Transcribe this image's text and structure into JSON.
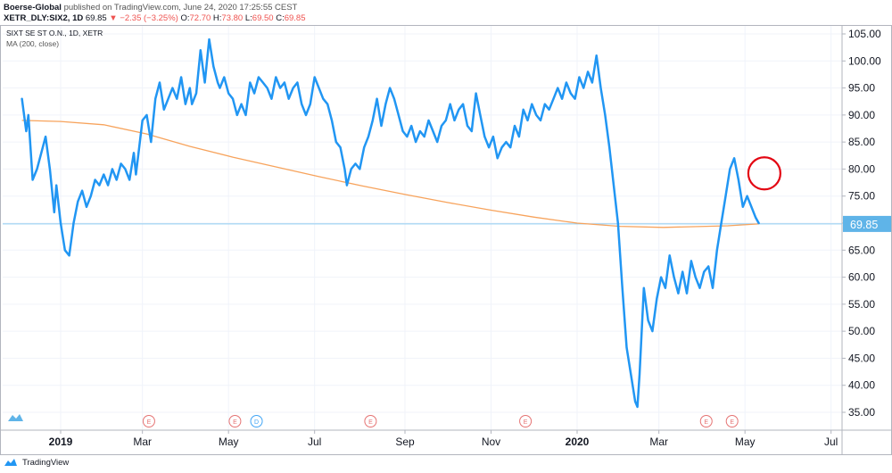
{
  "header": {
    "publisher": "Boerse-Global",
    "published_text": "published on TradingView.com, June 24, 2020 17:25:55 CEST",
    "symbol": "XETR_DLY:SIX2, 1D",
    "last": "69.85",
    "change_text": "▼ −2.35 (−3.25%)",
    "ohlc": {
      "o_label": "O:",
      "o": "72.70",
      "h_label": "H:",
      "h": "73.80",
      "l_label": "L:",
      "l": "69.50",
      "c_label": "C:",
      "c": "69.85"
    }
  },
  "legend": {
    "title": "SIXT SE ST O.N., 1D, XETR",
    "indicator": "MA (200, close)"
  },
  "footer": {
    "brand": "TradingView"
  },
  "colors": {
    "price_line": "#2196f3",
    "ma_line": "#f7a35c",
    "last_price_line": "#8ecbf0",
    "last_price_tag": "#5fb4e8",
    "annotation_circle": "#e30613",
    "earnings_marker": "#e57373",
    "dividend_marker": "#42a5f5"
  },
  "chart_data": {
    "type": "line",
    "title": "SIXT SE ST O.N., 1D, XETR",
    "ylim": [
      31,
      108
    ],
    "y_ticks": [
      35,
      40,
      45,
      50,
      55,
      60,
      65,
      70,
      75,
      80,
      85,
      90,
      95,
      100,
      105
    ],
    "y_tick_labels": [
      "35.00",
      "40.00",
      "45.00",
      "50.00",
      "55.00",
      "60.00",
      "65.00",
      "70.00",
      "75.00",
      "80.00",
      "85.00",
      "90.00",
      "95.00",
      "100.00",
      "105.00"
    ],
    "x_ticks": [
      {
        "label": "2019",
        "t": 0.5,
        "bold": true
      },
      {
        "label": "Mar",
        "t": 2.4
      },
      {
        "label": "May",
        "t": 4.4
      },
      {
        "label": "Jul",
        "t": 6.4
      },
      {
        "label": "Sep",
        "t": 8.5
      },
      {
        "label": "Nov",
        "t": 10.5
      },
      {
        "label": "2020",
        "t": 12.5,
        "bold": true
      },
      {
        "label": "Mar",
        "t": 14.4
      },
      {
        "label": "May",
        "t": 16.4
      },
      {
        "label": "Jul",
        "t": 18.4
      }
    ],
    "x_range": [
      -0.4,
      18.6
    ],
    "last_price": 69.85,
    "last_price_label": "69.85",
    "series": [
      {
        "name": "SIX2",
        "points": [
          [
            -0.4,
            93
          ],
          [
            -0.3,
            87
          ],
          [
            -0.25,
            90
          ],
          [
            -0.15,
            78
          ],
          [
            -0.05,
            80
          ],
          [
            0.05,
            83
          ],
          [
            0.15,
            86
          ],
          [
            0.25,
            80
          ],
          [
            0.35,
            72
          ],
          [
            0.4,
            77
          ],
          [
            0.5,
            70
          ],
          [
            0.6,
            65
          ],
          [
            0.7,
            64
          ],
          [
            0.8,
            70
          ],
          [
            0.9,
            74
          ],
          [
            1.0,
            76
          ],
          [
            1.1,
            73
          ],
          [
            1.2,
            75
          ],
          [
            1.3,
            78
          ],
          [
            1.4,
            77
          ],
          [
            1.5,
            79
          ],
          [
            1.6,
            77
          ],
          [
            1.7,
            80
          ],
          [
            1.8,
            78
          ],
          [
            1.9,
            81
          ],
          [
            2.0,
            80
          ],
          [
            2.1,
            78
          ],
          [
            2.2,
            83
          ],
          [
            2.25,
            79
          ],
          [
            2.4,
            89
          ],
          [
            2.5,
            90
          ],
          [
            2.6,
            85
          ],
          [
            2.7,
            93
          ],
          [
            2.8,
            96
          ],
          [
            2.9,
            91
          ],
          [
            3.0,
            93
          ],
          [
            3.1,
            95
          ],
          [
            3.2,
            93
          ],
          [
            3.3,
            97
          ],
          [
            3.4,
            92
          ],
          [
            3.5,
            95
          ],
          [
            3.55,
            92
          ],
          [
            3.65,
            94
          ],
          [
            3.75,
            102
          ],
          [
            3.85,
            96
          ],
          [
            3.95,
            104
          ],
          [
            4.05,
            99
          ],
          [
            4.15,
            96
          ],
          [
            4.2,
            95
          ],
          [
            4.3,
            97
          ],
          [
            4.4,
            94
          ],
          [
            4.5,
            93
          ],
          [
            4.6,
            90
          ],
          [
            4.7,
            92
          ],
          [
            4.8,
            90
          ],
          [
            4.9,
            96
          ],
          [
            5.0,
            94
          ],
          [
            5.1,
            97
          ],
          [
            5.2,
            96
          ],
          [
            5.3,
            95
          ],
          [
            5.4,
            93
          ],
          [
            5.5,
            97
          ],
          [
            5.6,
            95
          ],
          [
            5.7,
            96
          ],
          [
            5.8,
            93
          ],
          [
            5.9,
            95
          ],
          [
            6.0,
            96
          ],
          [
            6.1,
            92
          ],
          [
            6.2,
            90
          ],
          [
            6.3,
            92
          ],
          [
            6.4,
            97
          ],
          [
            6.5,
            95
          ],
          [
            6.6,
            93
          ],
          [
            6.7,
            92
          ],
          [
            6.8,
            89
          ],
          [
            6.9,
            85
          ],
          [
            7.0,
            84
          ],
          [
            7.1,
            80
          ],
          [
            7.15,
            77
          ],
          [
            7.25,
            80
          ],
          [
            7.35,
            81
          ],
          [
            7.45,
            80
          ],
          [
            7.55,
            84
          ],
          [
            7.65,
            86
          ],
          [
            7.75,
            89
          ],
          [
            7.85,
            93
          ],
          [
            7.95,
            88
          ],
          [
            8.05,
            92
          ],
          [
            8.15,
            95
          ],
          [
            8.25,
            93
          ],
          [
            8.35,
            90
          ],
          [
            8.45,
            87
          ],
          [
            8.55,
            86
          ],
          [
            8.65,
            88
          ],
          [
            8.75,
            85
          ],
          [
            8.85,
            87
          ],
          [
            8.95,
            86
          ],
          [
            9.05,
            89
          ],
          [
            9.15,
            87
          ],
          [
            9.25,
            85
          ],
          [
            9.35,
            88
          ],
          [
            9.45,
            89
          ],
          [
            9.55,
            92
          ],
          [
            9.65,
            89
          ],
          [
            9.75,
            91
          ],
          [
            9.85,
            92
          ],
          [
            9.95,
            88
          ],
          [
            10.05,
            87
          ],
          [
            10.15,
            94
          ],
          [
            10.25,
            90
          ],
          [
            10.35,
            86
          ],
          [
            10.45,
            84
          ],
          [
            10.55,
            86
          ],
          [
            10.65,
            82
          ],
          [
            10.75,
            84
          ],
          [
            10.85,
            85
          ],
          [
            10.95,
            84
          ],
          [
            11.05,
            88
          ],
          [
            11.15,
            86
          ],
          [
            11.25,
            91
          ],
          [
            11.35,
            89
          ],
          [
            11.45,
            92
          ],
          [
            11.55,
            90
          ],
          [
            11.65,
            89
          ],
          [
            11.75,
            92
          ],
          [
            11.85,
            91
          ],
          [
            11.95,
            93
          ],
          [
            12.05,
            95
          ],
          [
            12.15,
            93
          ],
          [
            12.25,
            96
          ],
          [
            12.35,
            94
          ],
          [
            12.45,
            93
          ],
          [
            12.55,
            97
          ],
          [
            12.65,
            95
          ],
          [
            12.75,
            98
          ],
          [
            12.85,
            96
          ],
          [
            12.95,
            101
          ],
          [
            13.05,
            95
          ],
          [
            13.15,
            90
          ],
          [
            13.25,
            84
          ],
          [
            13.35,
            77
          ],
          [
            13.45,
            70
          ],
          [
            13.55,
            58
          ],
          [
            13.65,
            47
          ],
          [
            13.75,
            42
          ],
          [
            13.85,
            37
          ],
          [
            13.9,
            36
          ],
          [
            13.95,
            42
          ],
          [
            14.05,
            58
          ],
          [
            14.15,
            52
          ],
          [
            14.25,
            50
          ],
          [
            14.35,
            56
          ],
          [
            14.45,
            60
          ],
          [
            14.55,
            58
          ],
          [
            14.65,
            64
          ],
          [
            14.75,
            60
          ],
          [
            14.85,
            57
          ],
          [
            14.95,
            61
          ],
          [
            15.05,
            57
          ],
          [
            15.15,
            63
          ],
          [
            15.25,
            60
          ],
          [
            15.35,
            58
          ],
          [
            15.45,
            61
          ],
          [
            15.55,
            62
          ],
          [
            15.65,
            58
          ],
          [
            15.75,
            65
          ],
          [
            15.85,
            70
          ],
          [
            15.95,
            75
          ],
          [
            16.05,
            80
          ],
          [
            16.15,
            82
          ],
          [
            16.25,
            78
          ],
          [
            16.35,
            73
          ],
          [
            16.45,
            75
          ],
          [
            16.55,
            73
          ],
          [
            16.65,
            71
          ],
          [
            16.72,
            70
          ]
        ]
      },
      {
        "name": "MA (200, close)",
        "points": [
          [
            -0.4,
            89
          ],
          [
            0.5,
            88.8
          ],
          [
            1.5,
            88.2
          ],
          [
            2.5,
            86.5
          ],
          [
            3.5,
            84.2
          ],
          [
            4.5,
            82.2
          ],
          [
            5.5,
            80.4
          ],
          [
            6.5,
            78.6
          ],
          [
            7.5,
            76.9
          ],
          [
            8.5,
            75.3
          ],
          [
            9.5,
            73.8
          ],
          [
            10.5,
            72.4
          ],
          [
            11.5,
            71.1
          ],
          [
            12.5,
            70
          ],
          [
            13.5,
            69.4
          ],
          [
            14.5,
            69.2
          ],
          [
            15.5,
            69.4
          ],
          [
            16.0,
            69.5
          ],
          [
            16.72,
            69.85
          ]
        ]
      }
    ],
    "events": [
      {
        "type": "E",
        "t": 2.55
      },
      {
        "type": "E",
        "t": 4.55
      },
      {
        "type": "D",
        "t": 5.05
      },
      {
        "type": "E",
        "t": 7.7
      },
      {
        "type": "E",
        "t": 11.3
      },
      {
        "type": "E",
        "t": 15.5
      },
      {
        "type": "E",
        "t": 16.1
      }
    ],
    "annotation": {
      "type": "circle",
      "t": 16.85,
      "y": 79.2
    }
  }
}
